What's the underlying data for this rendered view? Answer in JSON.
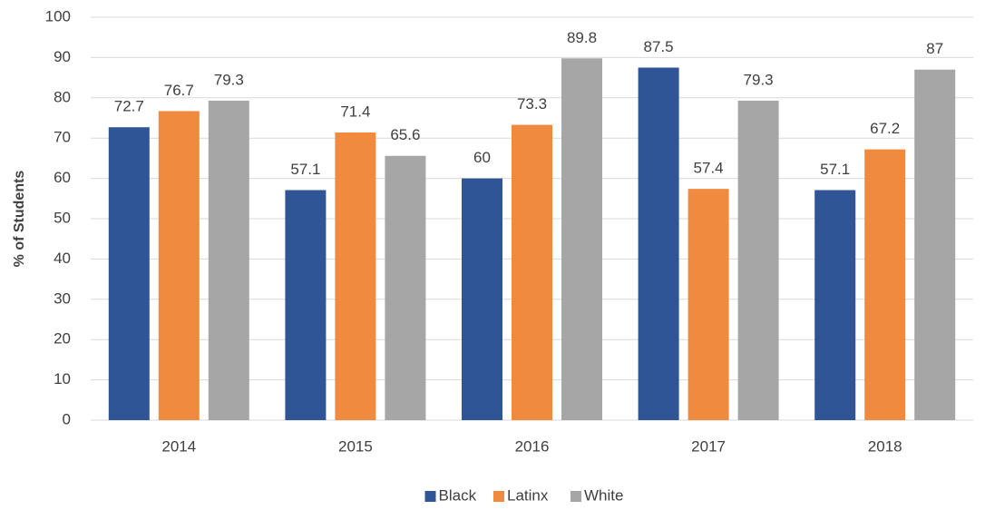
{
  "chart_data": {
    "type": "bar",
    "y_label": "% of Students",
    "categories": [
      "2014",
      "2015",
      "2016",
      "2017",
      "2018"
    ],
    "series": [
      {
        "name": "Black",
        "color": "#2f5597",
        "values": [
          72.7,
          57.1,
          60,
          87.5,
          57.1
        ]
      },
      {
        "name": "Latinx",
        "color": "#f08a3e",
        "values": [
          76.7,
          71.4,
          73.3,
          57.4,
          67.2
        ]
      },
      {
        "name": "White",
        "color": "#a6a6a6",
        "values": [
          79.3,
          65.6,
          89.8,
          79.3,
          87
        ]
      }
    ],
    "ylim": [
      0,
      100
    ],
    "yticks": [
      0,
      10,
      20,
      30,
      40,
      50,
      60,
      70,
      80,
      90,
      100
    ],
    "grid": true,
    "legend": "bottom"
  }
}
